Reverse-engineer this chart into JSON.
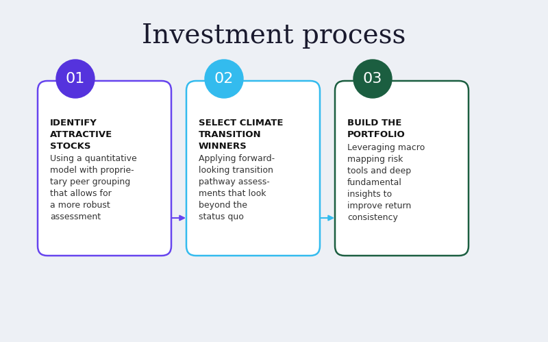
{
  "title": "Investment process",
  "title_fontsize": 28,
  "background_color": "#edf0f5",
  "steps": [
    {
      "number": "01",
      "circle_color": "#5533dd",
      "border_color": "#6644ee",
      "heading": "IDENTIFY\nATTRACTIVE\nSTOCKS",
      "body": "Using a quantitative\nmodel with proprie-\ntary peer grouping\nthat allows for\na more robust\nassessment",
      "arrow_color": "#6644ee"
    },
    {
      "number": "02",
      "circle_color": "#33bbee",
      "border_color": "#33bbee",
      "heading": "SELECT CLIMATE\nTRANSITION\nWINNERS",
      "body": "Applying forward-\nlooking transition\npathway assess-\nments that look\nbeyond the\nstatus quo",
      "arrow_color": "#33bbee"
    },
    {
      "number": "03",
      "circle_color": "#1b5e40",
      "border_color": "#1b5e40",
      "heading": "BUILD THE\nPORTFOLIO",
      "body": "Leveraging macro\nmapping risk\ntools and deep\nfundamental\ninsights to\nimprove return\nconsistency",
      "arrow_color": null
    }
  ],
  "card_bg": "#ffffff",
  "heading_fontsize": 9.5,
  "body_fontsize": 9,
  "number_fontsize": 16
}
